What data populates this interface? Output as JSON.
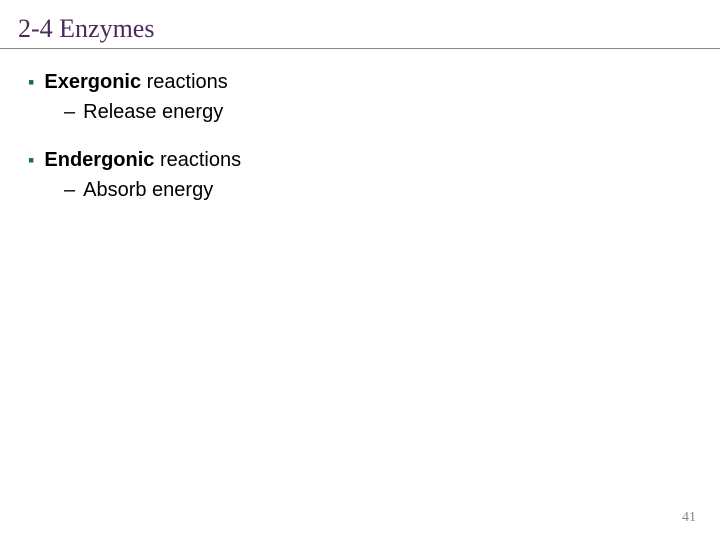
{
  "slide": {
    "title": "2-4 Enzymes",
    "title_color": "#4a2c5a",
    "title_fontsize": 26,
    "title_font": "Times New Roman",
    "divider_color": "#888888",
    "background_color": "#ffffff",
    "bullet_color": "#1a6b5a",
    "text_color": "#000000",
    "body_fontsize": 20,
    "body_font": "Arial",
    "page_number": "41",
    "page_number_color": "#888888",
    "page_number_fontsize": 14,
    "groups": [
      {
        "bold_part": "Exergonic",
        "rest_part": " reactions",
        "sub_items": [
          "Release energy"
        ]
      },
      {
        "bold_part": "Endergonic",
        "rest_part": " reactions",
        "sub_items": [
          "Absorb energy"
        ]
      }
    ]
  }
}
